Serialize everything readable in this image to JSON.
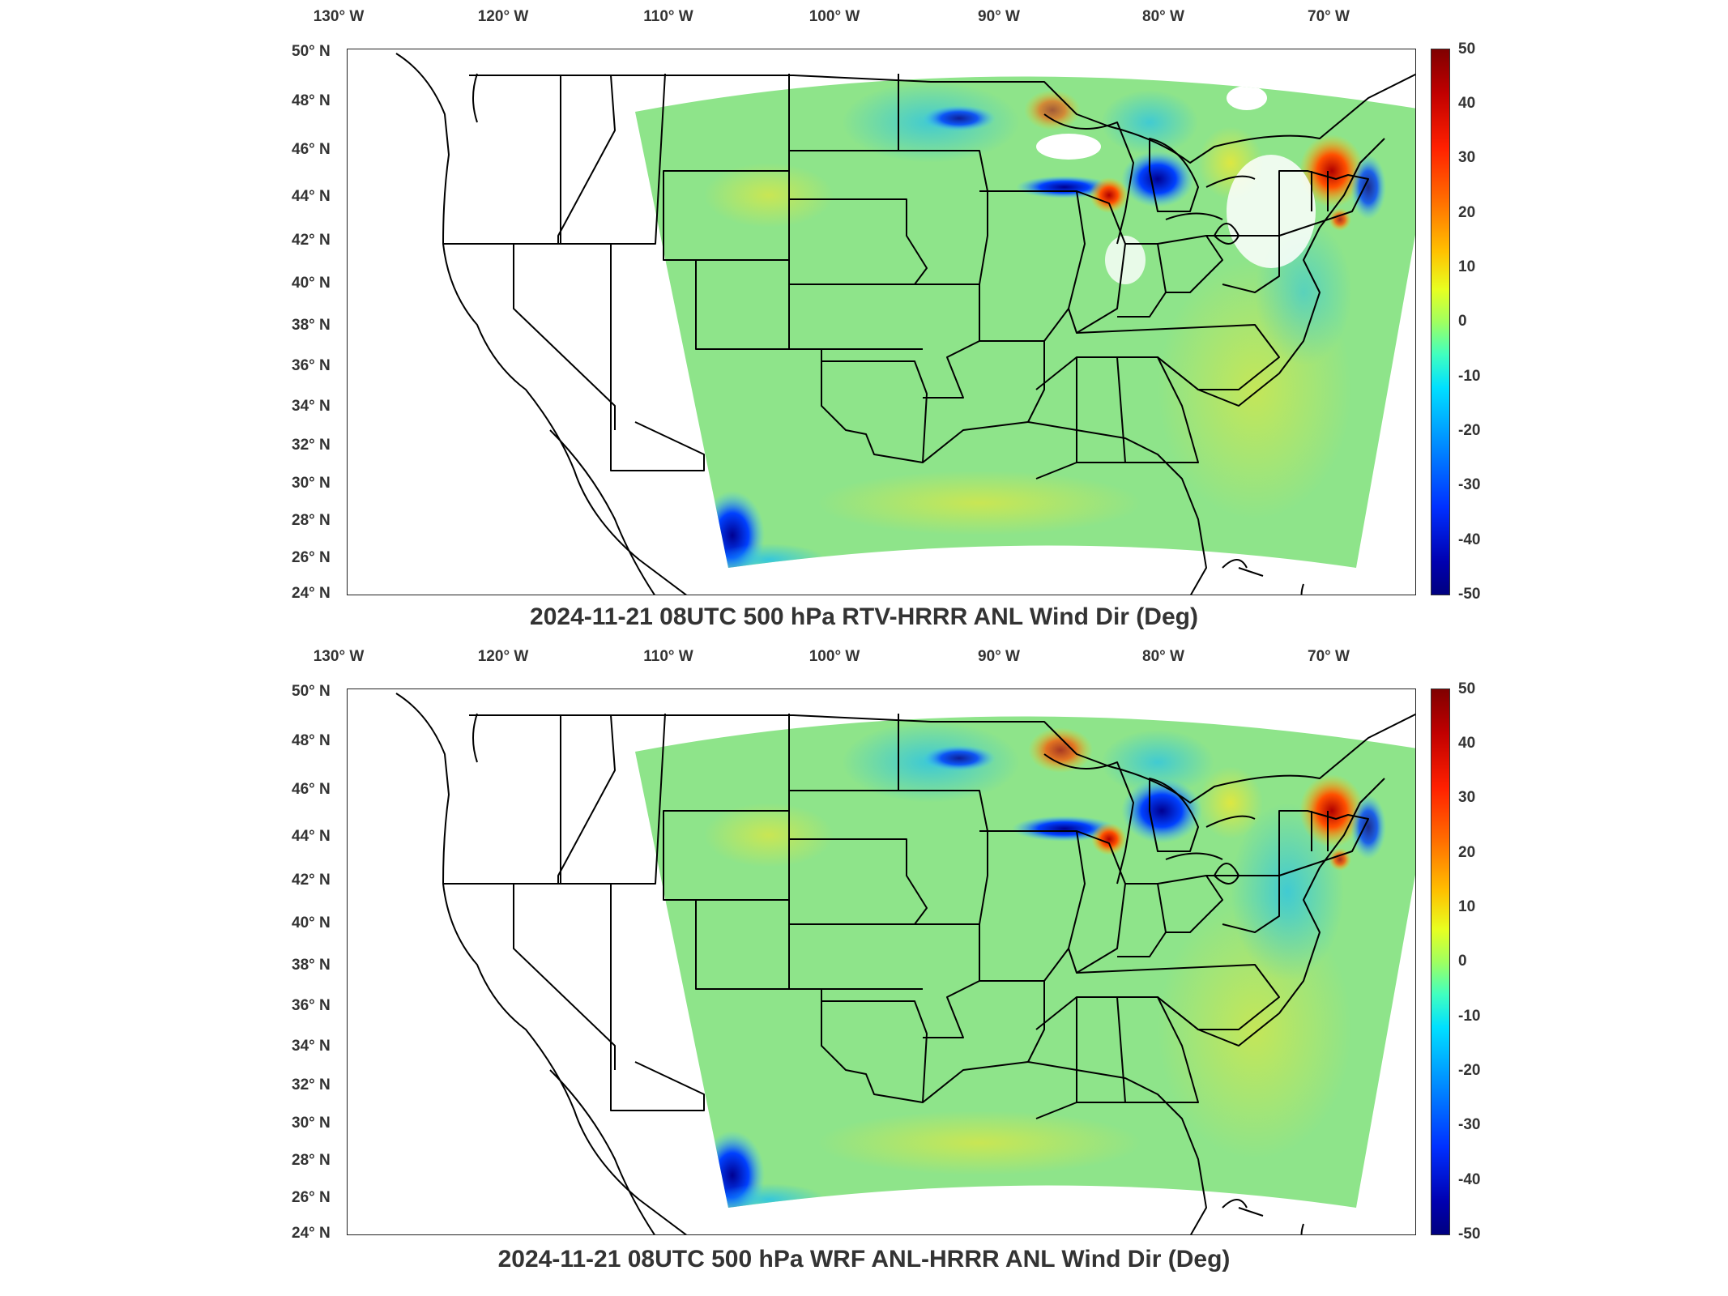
{
  "lon_labels": [
    "130° W",
    "120° W",
    "110° W",
    "100° W",
    "90° W",
    "80° W",
    "70° W"
  ],
  "lat_labels": [
    "50° N",
    "48° N",
    "46° N",
    "44° N",
    "42° N",
    "40° N",
    "38° N",
    "36° N",
    "34° N",
    "32° N",
    "30° N",
    "28° N",
    "26° N",
    "24° N"
  ],
  "colorbar_ticks": [
    "50",
    "40",
    "30",
    "20",
    "10",
    "0",
    "-10",
    "-20",
    "-30",
    "-40",
    "-50"
  ],
  "colorbar_range": [
    -50,
    50
  ],
  "colormap": "jet",
  "panels": [
    {
      "title": "2024-11-21 08UTC 500 hPa RTV-HRRR ANL Wind Dir (Deg)"
    },
    {
      "title": "2024-11-21 08UTC 500 hPa WRF ANL-HRRR ANL Wind Dir (Deg)"
    }
  ]
}
